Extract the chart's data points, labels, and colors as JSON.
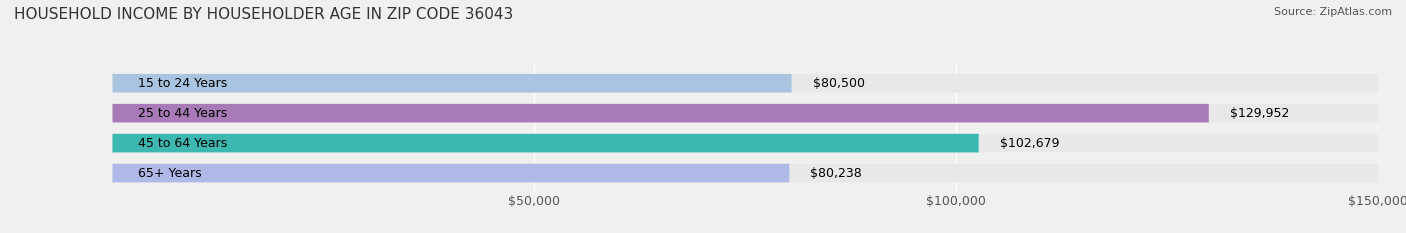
{
  "title": "HOUSEHOLD INCOME BY HOUSEHOLDER AGE IN ZIP CODE 36043",
  "source": "Source: ZipAtlas.com",
  "categories": [
    "15 to 24 Years",
    "25 to 44 Years",
    "45 to 64 Years",
    "65+ Years"
  ],
  "values": [
    80500,
    129952,
    102679,
    80238
  ],
  "bar_colors": [
    "#a8c4e0",
    "#a87ab8",
    "#3cb8b0",
    "#b0b8e8"
  ],
  "bar_labels": [
    "$80,500",
    "$129,952",
    "$102,679",
    "$80,238"
  ],
  "xlim": [
    0,
    150000
  ],
  "xticks": [
    50000,
    100000,
    150000
  ],
  "xticklabels": [
    "$50,000",
    "$100,000",
    "$150,000"
  ],
  "background_color": "#f0f0f0",
  "bar_background_color": "#e8e8e8",
  "title_fontsize": 11,
  "source_fontsize": 8,
  "label_fontsize": 9,
  "tick_fontsize": 9,
  "bar_height": 0.62
}
